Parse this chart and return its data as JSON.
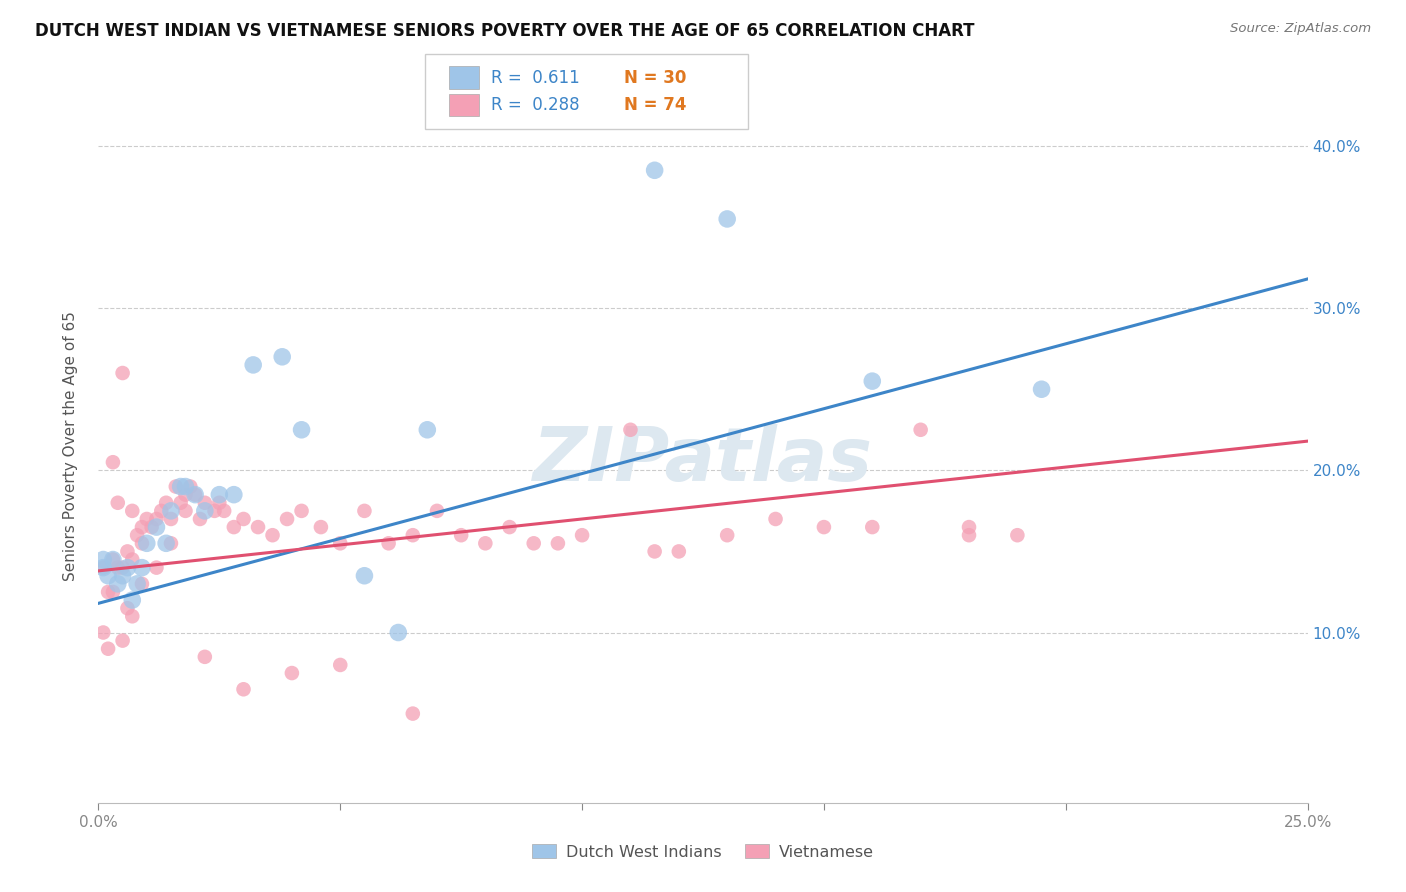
{
  "title": "DUTCH WEST INDIAN VS VIETNAMESE SENIORS POVERTY OVER THE AGE OF 65 CORRELATION CHART",
  "source": "Source: ZipAtlas.com",
  "ylabel": "Seniors Poverty Over the Age of 65",
  "xlim": [
    0.0,
    0.25
  ],
  "ylim": [
    -0.005,
    0.435
  ],
  "yticks": [
    0.1,
    0.2,
    0.3,
    0.4
  ],
  "ytick_labels": [
    "10.0%",
    "20.0%",
    "30.0%",
    "40.0%"
  ],
  "xticks": [
    0.0,
    0.05,
    0.1,
    0.15,
    0.2,
    0.25
  ],
  "xtick_labels": [
    "0.0%",
    "",
    "",
    "",
    "",
    "25.0%"
  ],
  "legend_r1": "R =  0.611",
  "legend_n1": "N = 30",
  "legend_r2": "R =  0.288",
  "legend_n2": "N = 74",
  "blue_color": "#9fc5e8",
  "pink_color": "#f4a0b5",
  "blue_line_color": "#3d85c8",
  "pink_line_color": "#e05070",
  "watermark": "ZIPatlas",
  "watermark_color": "#dde8f0",
  "dutch_x": [
    0.001,
    0.001,
    0.002,
    0.003,
    0.004,
    0.005,
    0.006,
    0.007,
    0.008,
    0.009,
    0.01,
    0.012,
    0.014,
    0.015,
    0.017,
    0.018,
    0.02,
    0.022,
    0.025,
    0.028,
    0.032,
    0.038,
    0.042,
    0.055,
    0.062,
    0.068,
    0.115,
    0.13,
    0.16,
    0.195
  ],
  "dutch_y": [
    0.14,
    0.145,
    0.135,
    0.145,
    0.13,
    0.135,
    0.14,
    0.12,
    0.13,
    0.14,
    0.155,
    0.165,
    0.155,
    0.175,
    0.19,
    0.19,
    0.185,
    0.175,
    0.185,
    0.185,
    0.265,
    0.27,
    0.225,
    0.135,
    0.1,
    0.225,
    0.385,
    0.355,
    0.255,
    0.25
  ],
  "viet_x": [
    0.001,
    0.001,
    0.002,
    0.002,
    0.003,
    0.003,
    0.004,
    0.004,
    0.005,
    0.005,
    0.006,
    0.006,
    0.007,
    0.007,
    0.008,
    0.009,
    0.009,
    0.01,
    0.011,
    0.012,
    0.013,
    0.014,
    0.015,
    0.016,
    0.017,
    0.018,
    0.019,
    0.02,
    0.021,
    0.022,
    0.024,
    0.026,
    0.028,
    0.03,
    0.033,
    0.036,
    0.039,
    0.042,
    0.046,
    0.05,
    0.055,
    0.06,
    0.065,
    0.07,
    0.075,
    0.08,
    0.085,
    0.09,
    0.095,
    0.1,
    0.11,
    0.115,
    0.12,
    0.13,
    0.14,
    0.15,
    0.16,
    0.17,
    0.18,
    0.19,
    0.003,
    0.005,
    0.007,
    0.009,
    0.012,
    0.015,
    0.018,
    0.022,
    0.025,
    0.03,
    0.04,
    0.05,
    0.065,
    0.18
  ],
  "viet_y": [
    0.14,
    0.1,
    0.09,
    0.125,
    0.145,
    0.125,
    0.14,
    0.18,
    0.14,
    0.095,
    0.15,
    0.115,
    0.145,
    0.11,
    0.16,
    0.165,
    0.13,
    0.17,
    0.165,
    0.17,
    0.175,
    0.18,
    0.17,
    0.19,
    0.18,
    0.175,
    0.19,
    0.185,
    0.17,
    0.18,
    0.175,
    0.175,
    0.165,
    0.17,
    0.165,
    0.16,
    0.17,
    0.175,
    0.165,
    0.155,
    0.175,
    0.155,
    0.16,
    0.175,
    0.16,
    0.155,
    0.165,
    0.155,
    0.155,
    0.16,
    0.225,
    0.15,
    0.15,
    0.16,
    0.17,
    0.165,
    0.165,
    0.225,
    0.165,
    0.16,
    0.205,
    0.26,
    0.175,
    0.155,
    0.14,
    0.155,
    0.185,
    0.085,
    0.18,
    0.065,
    0.075,
    0.08,
    0.05,
    0.16
  ]
}
